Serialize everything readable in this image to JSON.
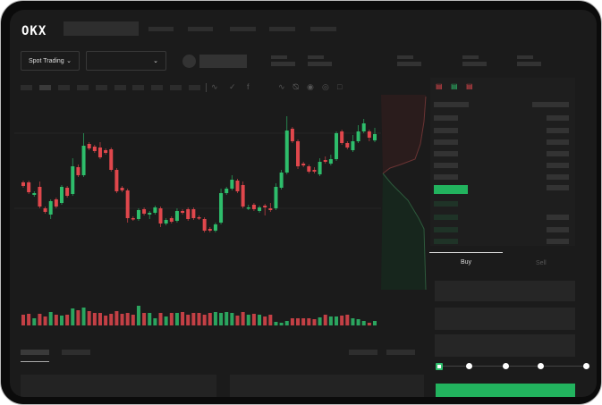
{
  "header": {
    "logo": "OKX"
  },
  "market_selector": {
    "label": "Spot Trading",
    "chevron": "chevron-down-icon"
  },
  "pair_selector": {
    "value": "",
    "chevron": "chevron-down-icon"
  },
  "order_form": {
    "tabs": [
      {
        "label": "Buy",
        "active": true
      },
      {
        "label": "Sell",
        "active": false
      }
    ],
    "slider_percent": 0,
    "submit_color": "#22b35e"
  },
  "colors": {
    "up": "#2ebd6b",
    "down": "#e0474c",
    "background": "#1b1b1b",
    "accent": "#22b35e"
  },
  "toolbar_icons": [
    "line-tool-icon",
    "indicator-icon",
    "fx-icon",
    "wave-icon",
    "ruler-icon",
    "camera-icon",
    "target-icon",
    "fullscreen-icon"
  ],
  "orderbook_icons": [
    "book-both-icon",
    "book-buy-icon",
    "book-sell-icon"
  ],
  "chart_data": {
    "type": "candlestick",
    "candles": [
      [
        97,
        93,
        99,
        91
      ],
      [
        97,
        86,
        99,
        84
      ],
      [
        83,
        85,
        87,
        81
      ],
      [
        92,
        70,
        98,
        68
      ],
      [
        68,
        64,
        70,
        62
      ],
      [
        61,
        76,
        78,
        56
      ],
      [
        78,
        70,
        80,
        68
      ],
      [
        74,
        92,
        94,
        72
      ],
      [
        91,
        82,
        93,
        80
      ],
      [
        84,
        115,
        124,
        82
      ],
      [
        114,
        105,
        117,
        103
      ],
      [
        105,
        138,
        152,
        103
      ],
      [
        140,
        135,
        142,
        133
      ],
      [
        137,
        132,
        139,
        130
      ],
      [
        136,
        125,
        142,
        123
      ],
      [
        133,
        130,
        135,
        128
      ],
      [
        134,
        111,
        136,
        109
      ],
      [
        111,
        87,
        113,
        85
      ],
      [
        91,
        88,
        93,
        86
      ],
      [
        88,
        57,
        90,
        52
      ],
      [
        57,
        56,
        59,
        54
      ],
      [
        56,
        66,
        68,
        54
      ],
      [
        67,
        62,
        69,
        60
      ],
      [
        61,
        63,
        65,
        56
      ],
      [
        63,
        69,
        71,
        61
      ],
      [
        68,
        51,
        70,
        47
      ],
      [
        51,
        55,
        57,
        49
      ],
      [
        57,
        53,
        59,
        51
      ],
      [
        54,
        65,
        68,
        52
      ],
      [
        65,
        63,
        67,
        61
      ],
      [
        67,
        56,
        69,
        54
      ],
      [
        67,
        57,
        69,
        55
      ],
      [
        58,
        57,
        60,
        55
      ],
      [
        56,
        43,
        58,
        41
      ],
      [
        45,
        43,
        47,
        41
      ],
      [
        43,
        50,
        52,
        41
      ],
      [
        52,
        85,
        90,
        50
      ],
      [
        85,
        90,
        92,
        83
      ],
      [
        90,
        100,
        105,
        88
      ],
      [
        99,
        87,
        101,
        85
      ],
      [
        94,
        70,
        98,
        68
      ],
      [
        68,
        69,
        72,
        66
      ],
      [
        72,
        67,
        74,
        65
      ],
      [
        65,
        69,
        71,
        63
      ],
      [
        71,
        69,
        73,
        60
      ],
      [
        68,
        66,
        74,
        64
      ],
      [
        68,
        92,
        96,
        66
      ],
      [
        91,
        108,
        111,
        89
      ],
      [
        108,
        155,
        171,
        106
      ],
      [
        157,
        143,
        159,
        141
      ],
      [
        143,
        115,
        145,
        112
      ],
      [
        118,
        116,
        120,
        114
      ],
      [
        115,
        109,
        117,
        107
      ],
      [
        111,
        109,
        114,
        107
      ],
      [
        106,
        120,
        124,
        104
      ],
      [
        122,
        120,
        126,
        118
      ],
      [
        118,
        123,
        128,
        116
      ],
      [
        123,
        152,
        154,
        121
      ],
      [
        154,
        141,
        156,
        139
      ],
      [
        141,
        136,
        143,
        134
      ],
      [
        133,
        143,
        150,
        131
      ],
      [
        143,
        154,
        161,
        141
      ],
      [
        154,
        163,
        168,
        152
      ],
      [
        154,
        147,
        156,
        143
      ],
      [
        144,
        151,
        158,
        142
      ]
    ],
    "candle_format": [
      "open",
      "close",
      "high",
      "low"
    ],
    "volume": [
      12,
      13,
      8,
      13,
      10,
      15,
      12,
      11,
      12,
      19,
      17,
      20,
      16,
      14,
      14,
      11,
      13,
      16,
      13,
      14,
      12,
      22,
      14,
      14,
      8,
      14,
      10,
      14,
      14,
      15,
      12,
      14,
      14,
      12,
      14,
      15,
      14,
      15,
      14,
      11,
      15,
      12,
      13,
      12,
      10,
      12,
      4,
      3,
      5,
      8,
      8,
      8,
      8,
      7,
      9,
      12,
      10,
      10,
      11,
      12,
      8,
      7,
      5,
      3,
      5
    ],
    "grid": true,
    "depth": {
      "asks_color": "#e0474c",
      "bids_color": "#2ebd6b"
    }
  }
}
